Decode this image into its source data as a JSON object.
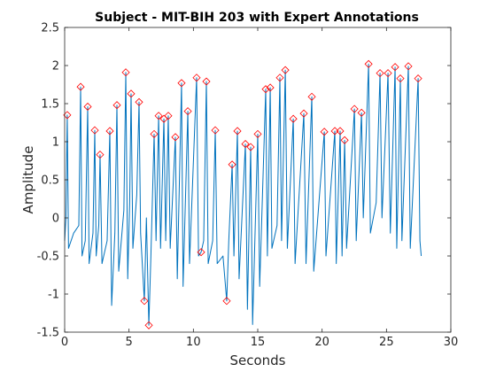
{
  "chart_data": {
    "type": "line",
    "title": "Subject - MIT-BIH 203 with Expert Annotations",
    "xlabel": "Seconds",
    "ylabel": "Amplitude",
    "xlim": [
      0,
      30
    ],
    "xticks": [
      0,
      5,
      10,
      15,
      20,
      25,
      30
    ],
    "ylim": [
      -1.5,
      2.5
    ],
    "yticks": [
      -1.5,
      -1,
      -0.5,
      0,
      0.5,
      1,
      1.5,
      2,
      2.5
    ],
    "series": [
      {
        "color": "#0072bd",
        "x": [
          0,
          0.1,
          0.2,
          0.3,
          0.7,
          1.1,
          1.24,
          1.35,
          1.6,
          1.79,
          1.9,
          2.2,
          2.34,
          2.45,
          2.65,
          2.75,
          2.9,
          3.3,
          3.51,
          3.65,
          3.9,
          4.06,
          4.2,
          4.6,
          4.75,
          4.9,
          5.05,
          5.16,
          5.3,
          5.6,
          5.78,
          5.9,
          6.19,
          6.35,
          6.54,
          6.7,
          6.95,
          7.1,
          7.3,
          7.45,
          7.71,
          7.85,
          8.05,
          8.2,
          8.6,
          8.75,
          9.08,
          9.2,
          9.57,
          9.7,
          10.25,
          10.4,
          10.6,
          10.8,
          11.01,
          11.15,
          11.5,
          11.7,
          11.85,
          12.3,
          12.59,
          12.75,
          13.01,
          13.15,
          13.42,
          13.55,
          14.04,
          14.2,
          14.45,
          14.6,
          15,
          15.15,
          15.62,
          15.75,
          15.97,
          16.1,
          16.5,
          16.72,
          16.85,
          17.14,
          17.3,
          17.76,
          17.9,
          18.58,
          18.75,
          19.2,
          19.35,
          20.17,
          20.3,
          20.99,
          21.1,
          21.4,
          21.55,
          21.75,
          21.9,
          22.51,
          22.65,
          23.06,
          23.2,
          23.61,
          23.75,
          24.2,
          24.5,
          24.65,
          25.12,
          25.3,
          25.67,
          25.8,
          26.08,
          26.2,
          26.7,
          26.85,
          27.46,
          27.6,
          27.7
        ],
        "values": [
          -0.3,
          0,
          1.35,
          -0.4,
          -0.2,
          -0.1,
          1.72,
          -0.5,
          -0.3,
          1.46,
          -0.6,
          -0.2,
          1.15,
          -0.5,
          -0.1,
          0.83,
          -0.6,
          -0.3,
          1.14,
          -1.15,
          -0.2,
          1.48,
          -0.7,
          0.1,
          1.91,
          -0.8,
          0.2,
          1.63,
          -0.4,
          0.3,
          1.52,
          -0.2,
          -1.09,
          0,
          -1.41,
          -0.5,
          1.1,
          -0.3,
          1.34,
          -0.4,
          1.3,
          -0.3,
          1.34,
          -0.4,
          1.06,
          -0.8,
          1.77,
          -0.9,
          1.4,
          -0.6,
          1.84,
          -0.5,
          -0.45,
          -0.3,
          1.79,
          -0.6,
          -0.3,
          1.15,
          -0.6,
          -0.5,
          -1.09,
          -0.3,
          0.7,
          -0.5,
          1.14,
          -0.8,
          0.97,
          -1.2,
          0.93,
          -1.4,
          1.1,
          -0.9,
          1.69,
          -0.5,
          1.71,
          -0.4,
          -0.1,
          1.84,
          -0.3,
          1.94,
          -0.4,
          1.3,
          -0.6,
          1.37,
          -0.6,
          1.59,
          -0.7,
          1.13,
          -0.5,
          1.14,
          -0.6,
          1.14,
          -0.5,
          1.02,
          -0.4,
          1.43,
          -0.3,
          1.38,
          0,
          2.02,
          -0.2,
          0.2,
          1.9,
          0,
          1.9,
          -0.2,
          1.98,
          -0.4,
          1.83,
          -0.3,
          1.99,
          -0.4,
          1.83,
          -0.3,
          -0.5
        ]
      },
      {
        "color": "#ff0000",
        "marker": "diamond",
        "x": [
          0.2,
          1.24,
          1.79,
          2.34,
          2.75,
          3.51,
          4.06,
          4.75,
          5.16,
          5.78,
          6.19,
          6.54,
          6.95,
          7.3,
          7.71,
          8.05,
          8.6,
          9.08,
          9.57,
          10.25,
          10.6,
          11.01,
          11.7,
          12.59,
          13.01,
          13.42,
          14.04,
          14.45,
          15,
          15.62,
          15.97,
          16.72,
          17.14,
          17.76,
          18.58,
          19.2,
          20.17,
          20.99,
          21.4,
          21.75,
          22.51,
          23.06,
          23.61,
          24.5,
          25.12,
          25.67,
          26.08,
          26.7,
          27.46
        ],
        "values": [
          1.35,
          1.72,
          1.46,
          1.15,
          0.83,
          1.14,
          1.48,
          1.91,
          1.63,
          1.52,
          -1.09,
          -1.41,
          1.1,
          1.34,
          1.3,
          1.34,
          1.06,
          1.77,
          1.4,
          1.84,
          -0.45,
          1.79,
          1.15,
          -1.09,
          0.7,
          1.14,
          0.97,
          0.93,
          1.1,
          1.69,
          1.71,
          1.84,
          1.94,
          1.3,
          1.37,
          1.59,
          1.13,
          1.14,
          1.14,
          1.02,
          1.43,
          1.38,
          2.02,
          1.9,
          1.9,
          1.98,
          1.83,
          1.99,
          1.83
        ]
      }
    ]
  }
}
